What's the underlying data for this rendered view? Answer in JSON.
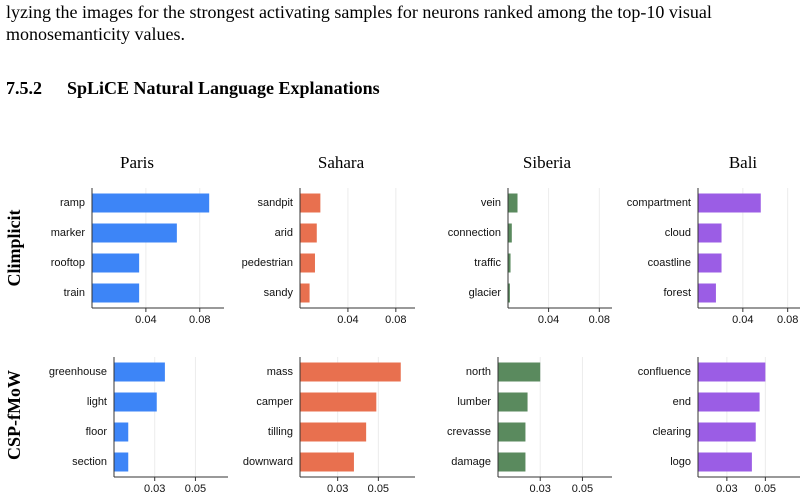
{
  "text": [
    "lyzing the images for the strongest activating samples for neurons ranked among the top-10 visual",
    "monosemanticity values."
  ],
  "heading": {
    "number": "7.5.2",
    "title": "SpLiCE Natural Language Explanations"
  },
  "row_labels": [
    "Climplicit",
    "CSP-fMoW"
  ],
  "chart_data": [
    {
      "type": "bar",
      "title": "Paris",
      "categories": [
        "ramp",
        "marker",
        "rooftop",
        "train"
      ],
      "values": [
        0.087,
        0.063,
        0.035,
        0.035
      ],
      "color": "#3d85f7",
      "xlim": [
        0,
        0.098
      ],
      "xticks": [
        0.04,
        0.08
      ],
      "grid": true
    },
    {
      "type": "bar",
      "title": "Sahara",
      "categories": [
        "sandpit",
        "arid",
        "pedestrian",
        "sandy"
      ],
      "values": [
        0.017,
        0.014,
        0.0125,
        0.008
      ],
      "color": "#e8704f",
      "xlim": [
        0,
        0.096
      ],
      "xticks": [
        0.04,
        0.08
      ],
      "grid": true
    },
    {
      "type": "bar",
      "title": "Siberia",
      "categories": [
        "vein",
        "connection",
        "traffic",
        "glacier"
      ],
      "values": [
        0.0155,
        0.011,
        0.01,
        0.0095
      ],
      "color": "#5a8a5e",
      "xlim": [
        0.008,
        0.09
      ],
      "xticks": [
        0.04,
        0.08
      ],
      "grid": true
    },
    {
      "type": "bar",
      "title": "Bali",
      "categories": [
        "compartment",
        "cloud",
        "coastline",
        "forest"
      ],
      "values": [
        0.056,
        0.021,
        0.021,
        0.016
      ],
      "color": "#9b5de5",
      "xlim": [
        0,
        0.091
      ],
      "xticks": [
        0.04,
        0.08
      ],
      "grid": true
    },
    {
      "type": "bar",
      "categories": [
        "greenhouse",
        "light",
        "floor",
        "section"
      ],
      "values": [
        0.035,
        0.031,
        0.017,
        0.017
      ],
      "color": "#3d85f7",
      "xlim": [
        0.01,
        0.066
      ],
      "xticks": [
        0.03,
        0.05
      ],
      "grid": true
    },
    {
      "type": "bar",
      "categories": [
        "mass",
        "camper",
        "tilling",
        "downward"
      ],
      "values": [
        0.061,
        0.049,
        0.044,
        0.038
      ],
      "color": "#e8704f",
      "xlim": [
        0.0115,
        0.068
      ],
      "xticks": [
        0.03,
        0.05
      ],
      "grid": true
    },
    {
      "type": "bar",
      "categories": [
        "north",
        "lumber",
        "crevasse",
        "damage"
      ],
      "values": [
        0.03,
        0.024,
        0.023,
        0.023
      ],
      "color": "#5a8a5e",
      "xlim": [
        0.01,
        0.064
      ],
      "xticks": [
        0.03,
        0.05
      ],
      "grid": true
    },
    {
      "type": "bar",
      "categories": [
        "confluence",
        "end",
        "clearing",
        "logo"
      ],
      "values": [
        0.05,
        0.047,
        0.045,
        0.043
      ],
      "color": "#9b5de5",
      "xlim": [
        0.015,
        0.068
      ],
      "xticks": [
        0.03,
        0.05
      ],
      "grid": true
    }
  ]
}
